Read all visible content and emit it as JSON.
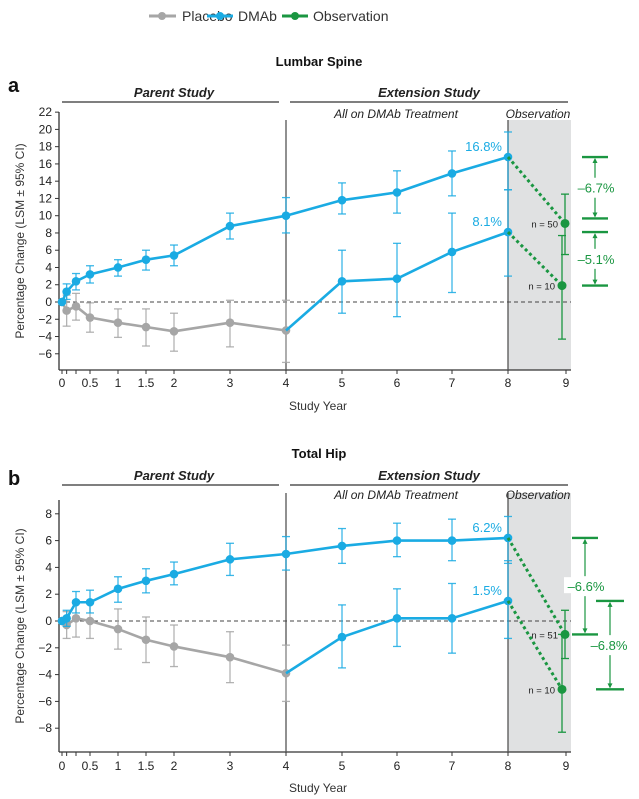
{
  "legend": {
    "items": [
      {
        "label": "Placebo",
        "color": "#a6a6a6"
      },
      {
        "label": "DMAb",
        "color": "#1aabe3"
      },
      {
        "label": "Observation",
        "color": "#1a9641"
      }
    ]
  },
  "colors": {
    "placebo": "#a6a6a6",
    "dmab": "#1aabe3",
    "observation": "#1a9641",
    "observation_bg": "#e0e1e2",
    "axis": "#333333"
  },
  "chart_data": [
    {
      "panel_label": "a",
      "type": "line",
      "title": "Lumbar Spine",
      "xlabel": "Study Year",
      "ylabel": "Percentage Change (LSM ± 95% CI)",
      "ylim": [
        -8,
        22
      ],
      "yticks": [
        -6,
        -4,
        -2,
        0,
        2,
        4,
        6,
        8,
        10,
        12,
        14,
        16,
        18,
        20,
        22
      ],
      "xticks": [
        0,
        0.5,
        1,
        1.5,
        2,
        3,
        4,
        5,
        6,
        7,
        8,
        9
      ],
      "xtick_labels": [
        "0",
        "0.5",
        "1",
        "1.5",
        "2",
        "3",
        "4",
        "5",
        "6",
        "7",
        "8",
        "9"
      ],
      "minor_xticks": [
        0.083,
        0.25
      ],
      "section_headers": {
        "parent": "Parent Study",
        "extension": "Extension Study",
        "treatment": "All on DMAb Treatment",
        "observation": "Observation"
      },
      "series": [
        {
          "name": "Placebo",
          "key": "placebo",
          "x": [
            0,
            0.083,
            0.25,
            0.5,
            1,
            1.5,
            2,
            3,
            4
          ],
          "y": [
            0,
            -1.0,
            -0.5,
            -1.8,
            -2.4,
            -2.9,
            -3.4,
            -2.4,
            -3.3
          ],
          "lo": [
            0,
            -2.8,
            -2.1,
            -3.5,
            -4.1,
            -5.1,
            -5.7,
            -5.2,
            -7.0
          ],
          "hi": [
            0,
            0.8,
            1.0,
            -0.1,
            -0.8,
            -0.8,
            -1.3,
            0.2,
            0.2
          ]
        },
        {
          "name": "DMAb (long-term)",
          "key": "dmab",
          "x": [
            0,
            0.083,
            0.25,
            0.5,
            1,
            1.5,
            2,
            3,
            4,
            5,
            6,
            7,
            8
          ],
          "y": [
            0,
            1.2,
            2.4,
            3.2,
            4.0,
            4.9,
            5.4,
            8.8,
            10.0,
            11.8,
            12.7,
            14.9,
            16.8
          ],
          "lo": [
            0,
            0.3,
            1.4,
            2.2,
            3.0,
            3.7,
            4.2,
            7.3,
            8.0,
            10.2,
            10.3,
            12.3,
            13.0
          ],
          "hi": [
            0,
            2.1,
            3.3,
            4.2,
            4.9,
            6.0,
            6.6,
            10.3,
            12.1,
            13.8,
            15.2,
            17.5,
            19.7
          ],
          "end_label": "16.8%"
        },
        {
          "name": "DMAb (crossover)",
          "key": "dmab",
          "x": [
            4,
            5,
            6,
            7,
            8
          ],
          "y": [
            -3.3,
            2.4,
            2.7,
            5.8,
            8.1
          ],
          "lo": [
            -3.3,
            -1.3,
            -1.7,
            1.1,
            3.0
          ],
          "hi": [
            -3.3,
            6.0,
            6.8,
            10.3,
            13.0
          ],
          "end_label": "8.1%"
        }
      ],
      "observation": [
        {
          "from_x": 8,
          "from_y": 16.8,
          "x": 9,
          "y": 9.1,
          "lo": 5.5,
          "hi": 12.5,
          "n_label": "n = 50",
          "change_label": "–6.7%"
        },
        {
          "from_x": 8,
          "from_y": 8.1,
          "x": 9,
          "y": 1.9,
          "lo": -4.3,
          "hi": 7.7,
          "n_label": "n = 10",
          "change_label": "–5.1%"
        }
      ]
    },
    {
      "panel_label": "b",
      "type": "line",
      "title": "Total Hip",
      "xlabel": "Study Year",
      "ylabel": "Percentage Change (LSM ± 95% CI)",
      "ylim": [
        -9.7,
        9
      ],
      "yticks": [
        -8,
        -6,
        -4,
        -2,
        0,
        2,
        4,
        6,
        8
      ],
      "xticks": [
        0,
        0.5,
        1,
        1.5,
        2,
        3,
        4,
        5,
        6,
        7,
        8,
        9
      ],
      "xtick_labels": [
        "0",
        "0.5",
        "1",
        "1.5",
        "2",
        "3",
        "4",
        "5",
        "6",
        "7",
        "8",
        "9"
      ],
      "minor_xticks": [
        0.083,
        0.25
      ],
      "section_headers": {
        "parent": "Parent Study",
        "extension": "Extension Study",
        "treatment": "All on DMAb Treatment",
        "observation": "Observation"
      },
      "series": [
        {
          "name": "Placebo",
          "key": "placebo",
          "x": [
            0,
            0.083,
            0.25,
            0.5,
            1,
            1.5,
            2,
            3,
            4
          ],
          "y": [
            0,
            -0.3,
            0.2,
            0.0,
            -0.6,
            -1.4,
            -1.9,
            -2.7,
            -3.9
          ],
          "lo": [
            0,
            -1.3,
            -1.2,
            -1.3,
            -2.1,
            -3.1,
            -3.4,
            -4.6,
            -6.0
          ],
          "hi": [
            0,
            0.7,
            1.5,
            1.4,
            0.9,
            0.3,
            -0.3,
            -0.8,
            -1.8
          ]
        },
        {
          "name": "DMAb (long-term)",
          "key": "dmab",
          "x": [
            0,
            0.083,
            0.25,
            0.5,
            1,
            1.5,
            2,
            3,
            4,
            5,
            6,
            7,
            8
          ],
          "y": [
            0,
            0.2,
            1.4,
            1.4,
            2.4,
            3.0,
            3.5,
            4.6,
            5.0,
            5.6,
            6.0,
            6.0,
            6.2
          ],
          "lo": [
            0,
            -0.4,
            0.6,
            0.6,
            1.4,
            2.1,
            2.7,
            3.4,
            3.8,
            4.3,
            4.8,
            4.5,
            4.5
          ],
          "hi": [
            0,
            0.8,
            2.2,
            2.3,
            3.3,
            3.9,
            4.4,
            5.8,
            6.3,
            6.9,
            7.3,
            7.6,
            7.8
          ],
          "end_label": "6.2%"
        },
        {
          "name": "DMAb (crossover)",
          "key": "dmab",
          "x": [
            4,
            5,
            6,
            7,
            8
          ],
          "y": [
            -3.9,
            -1.2,
            0.2,
            0.2,
            1.5
          ],
          "lo": [
            -3.9,
            -3.5,
            -1.9,
            -2.4,
            -1.3
          ],
          "hi": [
            -3.9,
            1.2,
            2.4,
            2.8,
            4.3
          ],
          "end_label": "1.5%"
        }
      ],
      "observation": [
        {
          "from_x": 8,
          "from_y": 6.2,
          "x": 9,
          "y": -1.0,
          "lo": -2.8,
          "hi": 0.8,
          "n_label": "n = 51",
          "change_label": "–6.6%"
        },
        {
          "from_x": 8,
          "from_y": 1.5,
          "x": 9,
          "y": -5.1,
          "lo": -8.3,
          "hi": -1.0,
          "n_label": "n = 10",
          "change_label": "–6.8%"
        }
      ]
    }
  ]
}
